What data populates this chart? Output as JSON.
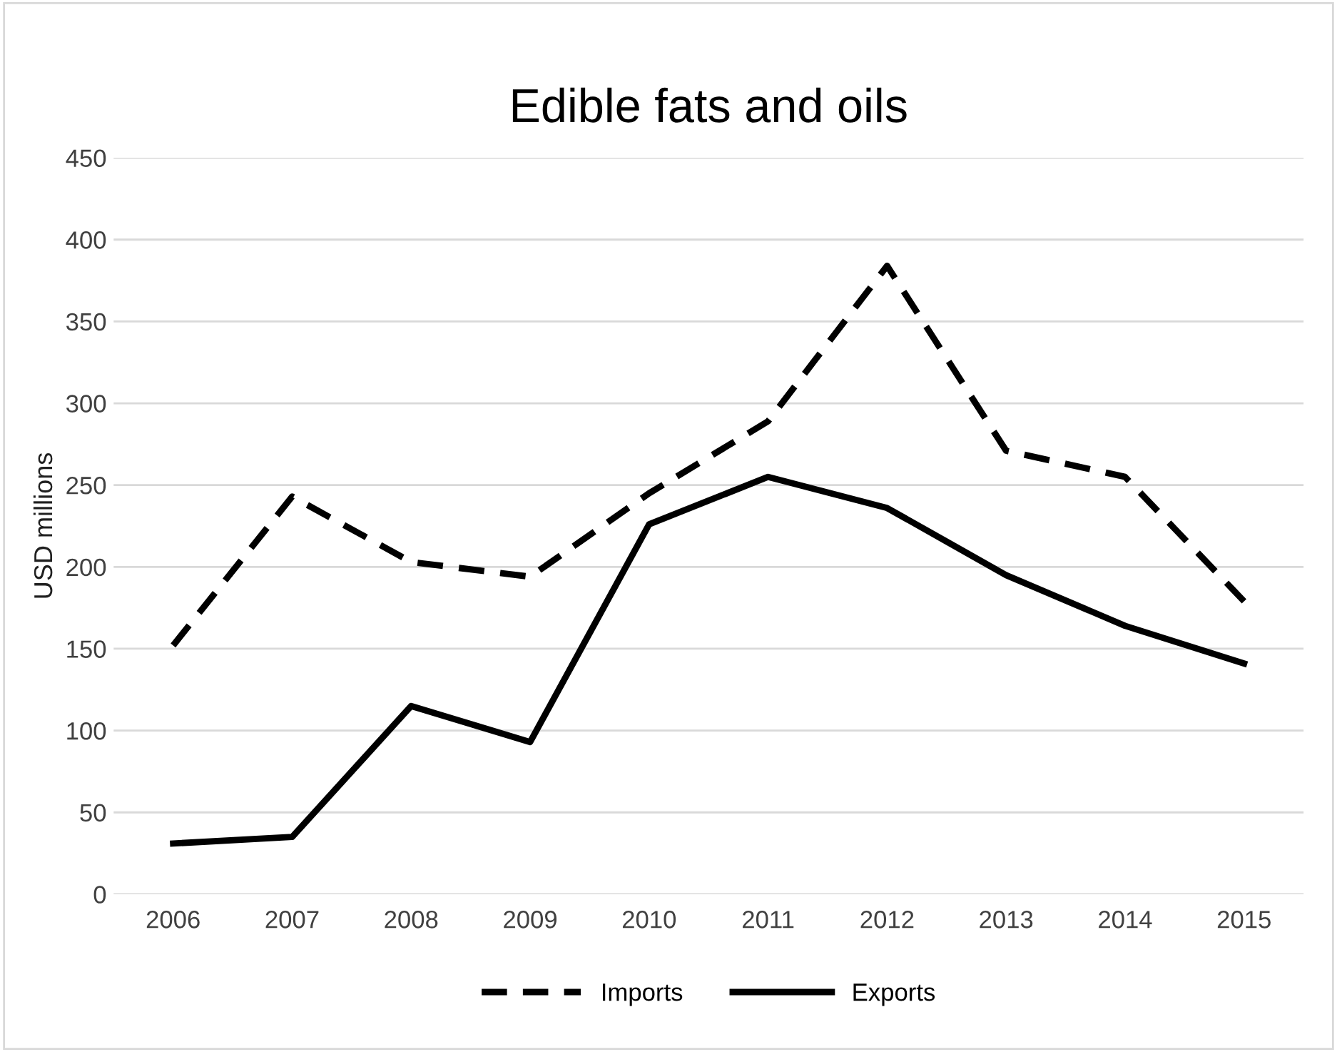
{
  "chart_data": {
    "type": "line",
    "title": "Edible fats and oils",
    "ylabel": "USD millions",
    "categories": [
      "2006",
      "2007",
      "2008",
      "2009",
      "2010",
      "2011",
      "2012",
      "2013",
      "2014",
      "2015"
    ],
    "series": [
      {
        "name": "Imports",
        "color": "#000000",
        "line_style": "dashed",
        "values": [
          152,
          243,
          203,
          194,
          245,
          289,
          384,
          271,
          255,
          179
        ]
      },
      {
        "name": "Exports",
        "color": "#000000",
        "line_style": "solid",
        "values": [
          31,
          35,
          115,
          93,
          226,
          255,
          236,
          195,
          164,
          141
        ]
      }
    ],
    "ylim": [
      0,
      450
    ],
    "yticks": [
      0,
      50,
      100,
      150,
      200,
      250,
      300,
      350,
      400,
      450
    ],
    "grid": "y",
    "legend": "bottom",
    "marker": "none"
  }
}
